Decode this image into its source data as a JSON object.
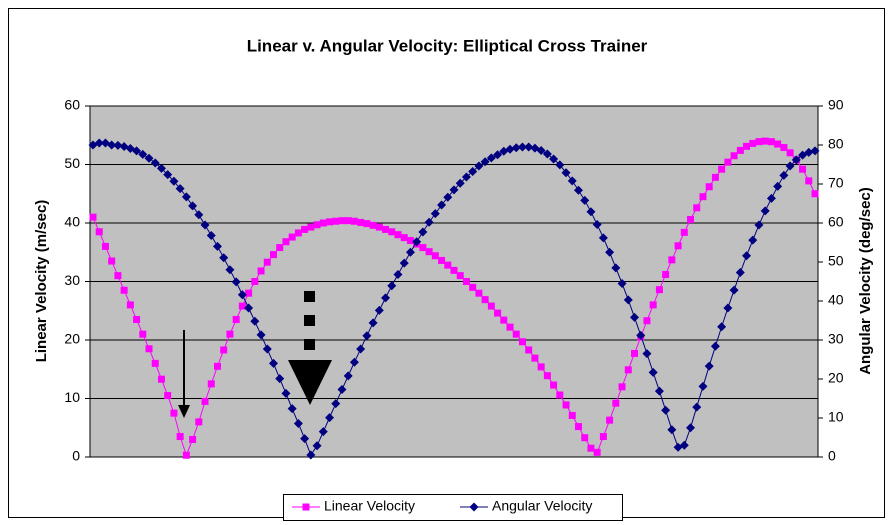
{
  "chart_data": {
    "type": "line",
    "title": "Linear v. Angular Velocity: Elliptical Cross Trainer",
    "ylabel": "Linear Velocity (m/sec)",
    "y2label": "Angular Velocity (deg/sec)",
    "ylim": [
      0,
      60
    ],
    "yticks": [
      0,
      10,
      20,
      30,
      40,
      50,
      60
    ],
    "y2lim": [
      0,
      90
    ],
    "y2ticks": [
      0,
      10,
      20,
      30,
      40,
      50,
      60,
      70,
      80,
      90
    ],
    "grid": true,
    "legend": "bottom",
    "series": [
      {
        "name": "Linear Velocity",
        "color": "#ff00ff",
        "marker": "square",
        "values": [
          41,
          38.5,
          36,
          33.5,
          31,
          28.5,
          26,
          23.5,
          21,
          18.5,
          16,
          13.3,
          10.5,
          7.5,
          3.5,
          0.3,
          3,
          6,
          9.5,
          12.5,
          15.5,
          18.3,
          21,
          23.5,
          25.8,
          28,
          30,
          31.8,
          33.3,
          34.6,
          35.8,
          36.8,
          37.6,
          38.3,
          38.9,
          39.3,
          39.7,
          40,
          40.2,
          40.3,
          40.4,
          40.4,
          40.3,
          40.1,
          39.9,
          39.6,
          39.3,
          38.9,
          38.5,
          38,
          37.5,
          37,
          36.4,
          35.8,
          35.1,
          34.4,
          33.6,
          32.8,
          31.9,
          31,
          30,
          29,
          28,
          26.9,
          25.8,
          24.6,
          23.4,
          22.2,
          21,
          19.7,
          18.3,
          16.9,
          15.4,
          13.9,
          12.3,
          10.6,
          8.9,
          7.1,
          5.2,
          3.3,
          1.5,
          0.8,
          3.5,
          6.3,
          9.2,
          12,
          14.9,
          17.7,
          20.5,
          23.3,
          26,
          28.6,
          31.2,
          33.7,
          36.1,
          38.4,
          40.6,
          42.6,
          44.5,
          46.2,
          47.8,
          49.2,
          50.4,
          51.5,
          52.4,
          53.1,
          53.6,
          53.9,
          54,
          53.9,
          53.5,
          52.9,
          52,
          50.8,
          49.2,
          47.2,
          45
        ]
      },
      {
        "name": "Angular Velocity",
        "color": "#000080",
        "marker": "diamond",
        "axis": "y2",
        "values": [
          80,
          80.5,
          80.5,
          80,
          79.9,
          79.6,
          79.1,
          78.5,
          77.6,
          76.6,
          75.4,
          74,
          72.4,
          70.7,
          68.8,
          66.7,
          64.4,
          62.1,
          59.5,
          56.8,
          54,
          51.1,
          48,
          44.9,
          41.6,
          38.2,
          34.8,
          31.3,
          27.7,
          24,
          20.1,
          16.3,
          12.4,
          8.6,
          4.7,
          0.5,
          2.9,
          6.5,
          10.1,
          13.7,
          17.3,
          20.8,
          24.3,
          27.7,
          31.1,
          34.4,
          37.6,
          40.8,
          43.9,
          46.8,
          49.7,
          52.5,
          55.2,
          57.7,
          60.2,
          62.4,
          64.6,
          66.6,
          68.5,
          70.2,
          71.8,
          73.2,
          74.6,
          75.7,
          76.7,
          77.5,
          78.4,
          78.9,
          79.3,
          79.5,
          79.5,
          79.2,
          78.6,
          77.7,
          76.4,
          74.9,
          72.9,
          70.8,
          68.4,
          65.8,
          62.9,
          59.6,
          56.2,
          52.5,
          48.5,
          44.5,
          40.3,
          35.8,
          31.2,
          26.5,
          21.7,
          16.9,
          12,
          7,
          2.5,
          3,
          7.5,
          12.8,
          18.1,
          23.3,
          28.4,
          33.4,
          38.2,
          42.8,
          47.3,
          51.6,
          55.6,
          59.5,
          63.1,
          66.3,
          69.4,
          72.2,
          74.6,
          76.2,
          77.4,
          78.1,
          78.5
        ]
      }
    ]
  }
}
